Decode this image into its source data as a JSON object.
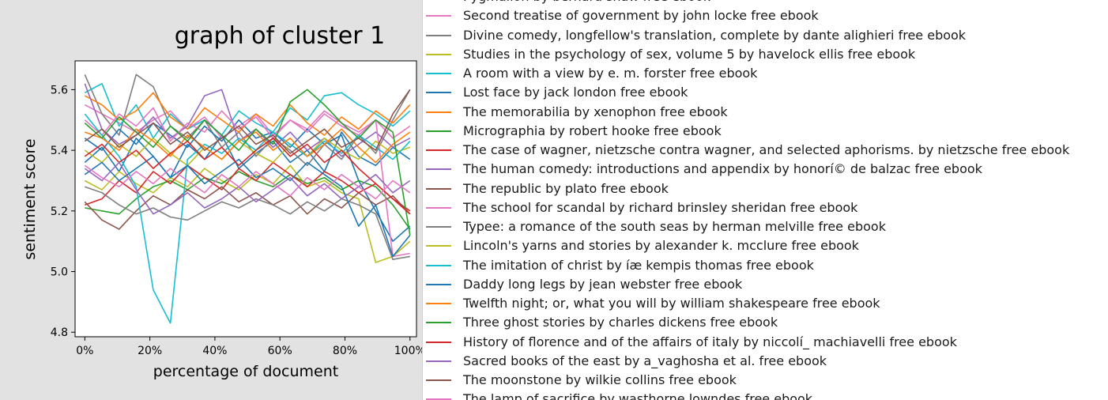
{
  "chart_data": {
    "type": "line",
    "title": "graph of cluster 1",
    "xlabel": "percentage of document",
    "ylabel": "sentiment score",
    "xlim": [
      -3,
      102
    ],
    "ylim": [
      4.785,
      5.695
    ],
    "x_ticks": [
      0,
      20,
      40,
      60,
      80,
      100
    ],
    "x_tick_labels": [
      "0%",
      "20%",
      "40%",
      "60%",
      "80%",
      "100%"
    ],
    "y_ticks": [
      4.8,
      5.0,
      5.2,
      5.4,
      5.6
    ],
    "y_tick_labels": [
      "4.8",
      "5.0",
      "5.2",
      "5.4",
      "5.6"
    ],
    "grid": false,
    "legend_position": "right, outside plot",
    "x": [
      0,
      5.26,
      10.53,
      15.79,
      21.05,
      26.32,
      31.58,
      36.84,
      42.11,
      47.37,
      52.63,
      57.89,
      63.16,
      68.42,
      73.68,
      78.95,
      84.21,
      89.47,
      94.74,
      100
    ],
    "series": [
      {
        "name": "Pygmalion by bernard shaw   free ebook",
        "color": "#1f77b4",
        "values": [
          5.36,
          5.41,
          5.33,
          5.44,
          5.38,
          5.31,
          5.42,
          5.37,
          5.45,
          5.34,
          5.39,
          5.43,
          5.36,
          5.4,
          5.33,
          5.46,
          5.38,
          5.35,
          5.41,
          5.37
        ]
      },
      {
        "name": "Second treatise of government by john locke   free ebook",
        "color": "#e377c2",
        "values": [
          5.55,
          5.52,
          5.49,
          5.46,
          5.5,
          5.53,
          5.47,
          5.51,
          5.44,
          5.48,
          5.52,
          5.45,
          5.5,
          5.47,
          5.53,
          5.49,
          5.46,
          5.5,
          5.44,
          5.48
        ]
      },
      {
        "name": "Divine comedy, longfellow's translation, complete by dante alighieri   free ebook",
        "color": "#7f7f7f",
        "values": [
          5.65,
          5.52,
          5.45,
          5.65,
          5.61,
          5.48,
          5.44,
          5.5,
          5.41,
          5.46,
          5.38,
          5.44,
          5.4,
          5.35,
          5.42,
          5.37,
          5.45,
          5.39,
          5.5,
          5.6
        ]
      },
      {
        "name": "Studies in the psychology of sex, volume 5 by havelock ellis   free ebook",
        "color": "#bcbd22",
        "values": [
          5.3,
          5.27,
          5.33,
          5.29,
          5.26,
          5.31,
          5.28,
          5.34,
          5.3,
          5.27,
          5.32,
          5.29,
          5.35,
          5.28,
          5.3,
          5.26,
          5.24,
          5.03,
          5.05,
          5.1
        ]
      },
      {
        "name": "A room with a view by e. m. forster   free ebook",
        "color": "#17becf",
        "values": [
          5.59,
          5.62,
          5.48,
          5.55,
          5.44,
          5.52,
          5.47,
          5.5,
          5.45,
          5.53,
          5.49,
          5.46,
          5.54,
          5.5,
          5.58,
          5.59,
          5.55,
          5.52,
          5.48,
          5.53
        ]
      },
      {
        "name": "Lost face by jack london   free ebook",
        "color": "#1f77b4",
        "values": [
          5.44,
          5.4,
          5.47,
          5.42,
          5.49,
          5.45,
          5.41,
          5.48,
          5.43,
          5.5,
          5.44,
          5.46,
          5.41,
          5.47,
          5.42,
          5.45,
          5.3,
          5.2,
          5.1,
          5.15
        ]
      },
      {
        "name": "The memorabilia by xenophon   free ebook",
        "color": "#ff7f0e",
        "values": [
          5.58,
          5.55,
          5.5,
          5.53,
          5.59,
          5.51,
          5.47,
          5.54,
          5.5,
          5.46,
          5.52,
          5.48,
          5.55,
          5.49,
          5.45,
          5.51,
          5.47,
          5.53,
          5.49,
          5.55
        ]
      },
      {
        "name": "Micrographia by robert hooke   free ebook",
        "color": "#2ca02c",
        "values": [
          5.21,
          5.2,
          5.19,
          5.24,
          5.28,
          5.3,
          5.27,
          5.31,
          5.29,
          5.33,
          5.3,
          5.28,
          5.32,
          5.29,
          5.31,
          5.27,
          5.3,
          5.28,
          5.22,
          5.14
        ]
      },
      {
        "name": "The case of wagner, nietzsche contra wagner, and selected aphorisms. by nietzsche   free ebook",
        "color": "#d62728",
        "values": [
          5.22,
          5.24,
          5.3,
          5.26,
          5.33,
          5.29,
          5.35,
          5.31,
          5.27,
          5.34,
          5.3,
          5.36,
          5.32,
          5.28,
          5.33,
          5.3,
          5.26,
          5.29,
          5.24,
          5.2
        ]
      },
      {
        "name": "The human comedy: introductions and appendix by honorí© de balzac   free ebook",
        "color": "#9467bd",
        "values": [
          5.62,
          5.47,
          5.42,
          5.45,
          5.51,
          5.44,
          5.48,
          5.58,
          5.6,
          5.43,
          5.47,
          5.41,
          5.46,
          5.4,
          5.44,
          5.38,
          5.42,
          5.46,
          5.41,
          5.44
        ]
      },
      {
        "name": "The republic by plato   free ebook",
        "color": "#8c564b",
        "values": [
          5.23,
          5.17,
          5.14,
          5.2,
          5.25,
          5.22,
          5.27,
          5.24,
          5.28,
          5.23,
          5.26,
          5.22,
          5.25,
          5.19,
          5.24,
          5.21,
          5.26,
          5.22,
          5.25,
          5.19
        ]
      },
      {
        "name": "The school for scandal by richard brinsley sheridan   free ebook",
        "color": "#e377c2",
        "values": [
          5.5,
          5.45,
          5.52,
          5.48,
          5.54,
          5.43,
          5.49,
          5.46,
          5.53,
          5.47,
          5.51,
          5.44,
          5.5,
          5.46,
          5.52,
          5.48,
          5.45,
          5.5,
          5.05,
          5.06
        ]
      },
      {
        "name": "Typee: a romance of the south seas by herman melville   free ebook",
        "color": "#7f7f7f",
        "values": [
          5.28,
          5.26,
          5.22,
          5.19,
          5.21,
          5.18,
          5.17,
          5.2,
          5.23,
          5.21,
          5.24,
          5.22,
          5.19,
          5.23,
          5.2,
          5.24,
          5.22,
          5.19,
          5.04,
          5.05
        ]
      },
      {
        "name": "Lincoln's yarns and stories by alexander k. mcclure   free ebook",
        "color": "#bcbd22",
        "values": [
          5.4,
          5.36,
          5.42,
          5.38,
          5.44,
          5.39,
          5.35,
          5.41,
          5.37,
          5.43,
          5.39,
          5.36,
          5.42,
          5.38,
          5.44,
          5.4,
          5.37,
          5.43,
          5.39,
          5.41
        ]
      },
      {
        "name": "The imitation of christ by íæ kempis thomas   free ebook",
        "color": "#17becf",
        "values": [
          5.52,
          5.45,
          5.38,
          5.28,
          4.94,
          4.83,
          5.37,
          5.42,
          5.39,
          5.44,
          5.4,
          5.46,
          5.42,
          5.38,
          5.43,
          5.39,
          5.45,
          5.41,
          5.37,
          5.43
        ]
      },
      {
        "name": "Daddy long legs by jean webster   free ebook",
        "color": "#1f77b4",
        "values": [
          5.32,
          5.36,
          5.3,
          5.34,
          5.38,
          5.31,
          5.35,
          5.29,
          5.33,
          5.37,
          5.31,
          5.34,
          5.3,
          5.36,
          5.32,
          5.28,
          5.15,
          5.22,
          5.05,
          5.12
        ]
      },
      {
        "name": "Twelfth night; or, what you will by william shakespeare   free ebook",
        "color": "#ff7f0e",
        "values": [
          5.46,
          5.44,
          5.4,
          5.47,
          5.43,
          5.38,
          5.45,
          5.41,
          5.37,
          5.43,
          5.46,
          5.4,
          5.44,
          5.38,
          5.42,
          5.47,
          5.41,
          5.36,
          5.42,
          5.46
        ]
      },
      {
        "name": "Three ghost stories by charles dickens   free ebook",
        "color": "#2ca02c",
        "values": [
          5.49,
          5.44,
          5.51,
          5.46,
          5.41,
          5.48,
          5.43,
          5.5,
          5.45,
          5.4,
          5.47,
          5.42,
          5.56,
          5.6,
          5.55,
          5.49,
          5.44,
          5.5,
          5.46,
          5.12
        ]
      },
      {
        "name": "History of florence and of the affairs of italy by niccolí_ machiavelli   free ebook",
        "color": "#d62728",
        "values": [
          5.38,
          5.42,
          5.36,
          5.4,
          5.34,
          5.39,
          5.43,
          5.37,
          5.41,
          5.35,
          5.4,
          5.44,
          5.38,
          5.42,
          5.36,
          5.4,
          5.34,
          5.29,
          5.24,
          5.19
        ]
      },
      {
        "name": "Sacred books of the east by a\u0007_vaghosha et al.   free ebook",
        "color": "#9467bd",
        "values": [
          5.34,
          5.3,
          5.36,
          5.27,
          5.19,
          5.22,
          5.26,
          5.21,
          5.24,
          5.28,
          5.23,
          5.27,
          5.31,
          5.25,
          5.29,
          5.24,
          5.28,
          5.32,
          5.26,
          5.3
        ]
      },
      {
        "name": "The moonstone by wilkie collins   free ebook",
        "color": "#8c564b",
        "values": [
          5.43,
          5.47,
          5.41,
          5.45,
          5.49,
          5.42,
          5.46,
          5.4,
          5.44,
          5.48,
          5.42,
          5.45,
          5.39,
          5.43,
          5.47,
          5.41,
          5.44,
          5.4,
          5.52,
          5.6
        ]
      },
      {
        "name": "The lamp of sacrifice by wasthorne lowndes   free ebook",
        "color": "#e377c2",
        "values": [
          5.35,
          5.31,
          5.28,
          5.33,
          5.29,
          5.34,
          5.3,
          5.26,
          5.32,
          5.28,
          5.33,
          5.29,
          5.25,
          5.31,
          5.27,
          5.32,
          5.28,
          5.24,
          5.3,
          5.26
        ]
      }
    ]
  }
}
